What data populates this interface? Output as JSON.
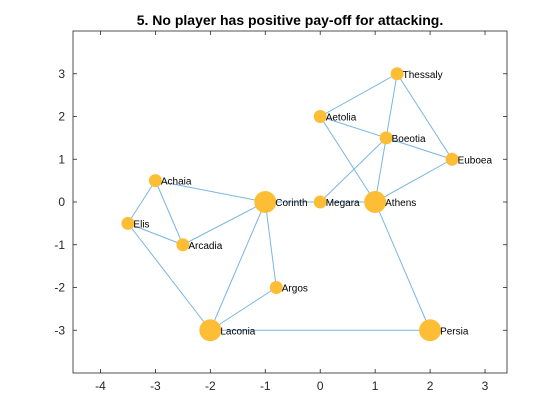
{
  "chart_data": {
    "type": "scatter",
    "subtype": "network-graph",
    "title": "5. No player has positive pay-off for attacking.",
    "xlabel": "",
    "ylabel": "",
    "xlim": [
      -4.5,
      3.4
    ],
    "ylim": [
      -4.0,
      4.0
    ],
    "xticks": [
      -4,
      -3,
      -2,
      -1,
      0,
      1,
      2,
      3
    ],
    "yticks": [
      -3,
      -2,
      -1,
      0,
      1,
      2,
      3
    ],
    "grid": false,
    "node_color": "#fdbe36",
    "edge_color": "#6aaee0",
    "nodes": [
      {
        "name": "Thessaly",
        "x": 1.4,
        "y": 3.0,
        "weight": 1
      },
      {
        "name": "Aetolia",
        "x": 0.0,
        "y": 2.0,
        "weight": 1
      },
      {
        "name": "Boeotia",
        "x": 1.2,
        "y": 1.5,
        "weight": 1
      },
      {
        "name": "Euboea",
        "x": 2.4,
        "y": 1.0,
        "weight": 1
      },
      {
        "name": "Achaia",
        "x": -3.0,
        "y": 0.5,
        "weight": 1
      },
      {
        "name": "Corinth",
        "x": -1.0,
        "y": 0.0,
        "weight": 3
      },
      {
        "name": "Megara",
        "x": 0.0,
        "y": 0.0,
        "weight": 1
      },
      {
        "name": "Athens",
        "x": 1.0,
        "y": 0.0,
        "weight": 3
      },
      {
        "name": "Elis",
        "x": -3.5,
        "y": -0.5,
        "weight": 1
      },
      {
        "name": "Arcadia",
        "x": -2.5,
        "y": -1.0,
        "weight": 1
      },
      {
        "name": "Argos",
        "x": -0.8,
        "y": -2.0,
        "weight": 1
      },
      {
        "name": "Laconia",
        "x": -2.0,
        "y": -3.0,
        "weight": 3
      },
      {
        "name": "Persia",
        "x": 2.0,
        "y": -3.0,
        "weight": 3
      }
    ],
    "edges": [
      [
        "Aetolia",
        "Thessaly"
      ],
      [
        "Aetolia",
        "Boeotia"
      ],
      [
        "Aetolia",
        "Athens"
      ],
      [
        "Thessaly",
        "Boeotia"
      ],
      [
        "Thessaly",
        "Euboea"
      ],
      [
        "Boeotia",
        "Euboea"
      ],
      [
        "Boeotia",
        "Athens"
      ],
      [
        "Boeotia",
        "Megara"
      ],
      [
        "Euboea",
        "Athens"
      ],
      [
        "Megara",
        "Athens"
      ],
      [
        "Corinth",
        "Megara"
      ],
      [
        "Achaia",
        "Corinth"
      ],
      [
        "Achaia",
        "Elis"
      ],
      [
        "Achaia",
        "Arcadia"
      ],
      [
        "Elis",
        "Arcadia"
      ],
      [
        "Elis",
        "Laconia"
      ],
      [
        "Arcadia",
        "Corinth"
      ],
      [
        "Corinth",
        "Argos"
      ],
      [
        "Corinth",
        "Laconia"
      ],
      [
        "Argos",
        "Laconia"
      ],
      [
        "Laconia",
        "Persia"
      ],
      [
        "Athens",
        "Persia"
      ]
    ]
  }
}
